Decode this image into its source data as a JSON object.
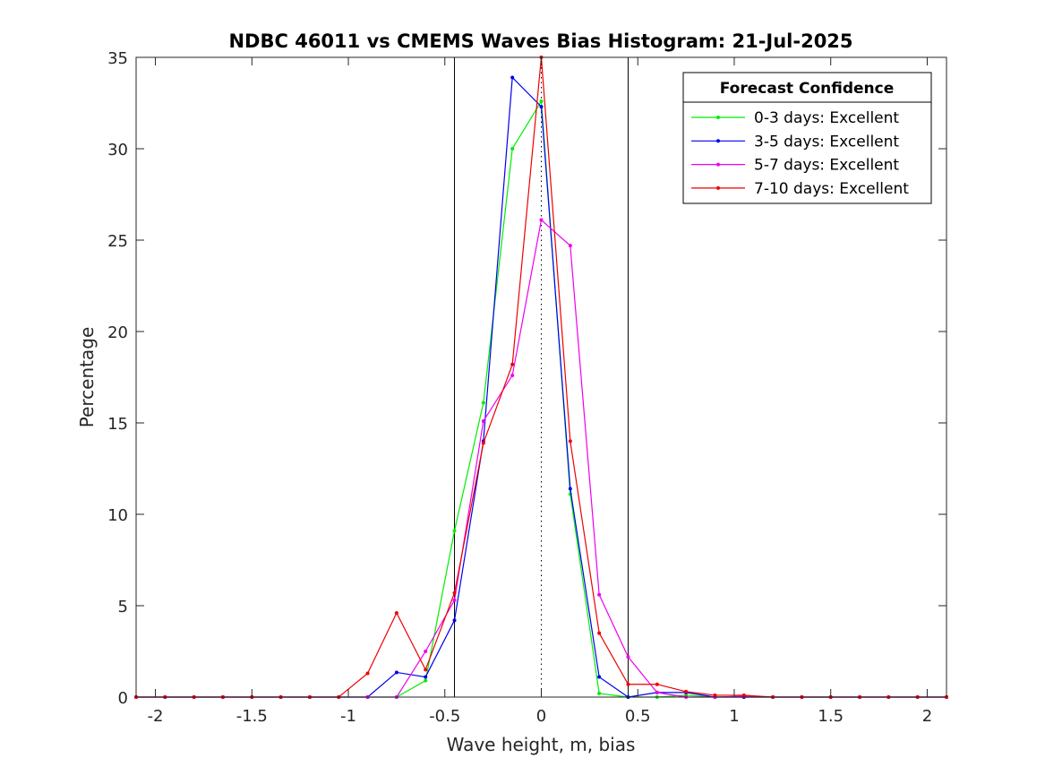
{
  "chart_data": {
    "type": "line",
    "title": "NDBC 46011 vs CMEMS Waves Bias Histogram: 21-Jul-2025",
    "xlabel": "Wave height, m, bias",
    "ylabel": "Percentage",
    "xlim": [
      -2.1,
      2.1
    ],
    "ylim": [
      0,
      35
    ],
    "xticks": [
      -2,
      -1.5,
      -1,
      -0.5,
      0,
      0.5,
      1,
      1.5,
      2
    ],
    "xtick_labels": [
      "-2",
      "-1.5",
      "-1",
      "-0.5",
      "0",
      "0.5",
      "1",
      "1.5",
      "2"
    ],
    "yticks": [
      0,
      5,
      10,
      15,
      20,
      25,
      30,
      35
    ],
    "ytick_labels": [
      "0",
      "5",
      "10",
      "15",
      "20",
      "25",
      "30",
      "35"
    ],
    "grid": false,
    "reference_lines": [
      {
        "x": -0.45,
        "style": "solid",
        "color": "#000000"
      },
      {
        "x": 0.45,
        "style": "solid",
        "color": "#000000"
      },
      {
        "x": 0,
        "style": "dotted",
        "color": "#000000"
      }
    ],
    "legend": {
      "title": "Forecast Confidence",
      "placement": "top-right"
    },
    "x": [
      -2.1,
      -1.95,
      -1.8,
      -1.65,
      -1.5,
      -1.35,
      -1.2,
      -1.05,
      -0.9,
      -0.75,
      -0.6,
      -0.45,
      -0.3,
      -0.15,
      0,
      0.15,
      0.3,
      0.45,
      0.6,
      0.75,
      0.9,
      1.05,
      1.2,
      1.35,
      1.5,
      1.65,
      1.8,
      1.95,
      2.1
    ],
    "series": [
      {
        "name": "0-3 days: Excellent",
        "color": "#00ee00",
        "values": [
          0,
          0,
          0,
          0,
          0,
          0,
          0,
          0,
          0,
          0,
          0.9,
          9.1,
          16.1,
          30.0,
          32.6,
          11.1,
          0.2,
          0.0,
          0.0,
          0.1,
          0.0,
          0,
          0,
          0,
          0,
          0,
          0,
          0,
          0
        ]
      },
      {
        "name": "3-5 days: Excellent",
        "color": "#0000ee",
        "values": [
          0,
          0,
          0,
          0,
          0,
          0,
          0,
          0,
          0,
          1.35,
          1.1,
          4.2,
          14.0,
          33.9,
          32.3,
          11.4,
          1.1,
          0.0,
          0.25,
          0.25,
          0.0,
          0,
          0,
          0,
          0,
          0,
          0,
          0,
          0
        ]
      },
      {
        "name": "5-7 days: Excellent",
        "color": "#ee00ee",
        "values": [
          0,
          0,
          0,
          0,
          0,
          0,
          0,
          0,
          0,
          0,
          2.5,
          5.3,
          15.1,
          17.6,
          26.1,
          24.7,
          5.6,
          2.2,
          0.25,
          0.0,
          0.0,
          0.05,
          0,
          0,
          0,
          0,
          0,
          0,
          0
        ]
      },
      {
        "name": "7-10 days: Excellent",
        "color": "#ee0000",
        "values": [
          0,
          0,
          0,
          0,
          0,
          0,
          0,
          0,
          1.3,
          4.6,
          1.5,
          5.7,
          13.9,
          18.2,
          35.0,
          14.0,
          3.5,
          0.7,
          0.7,
          0.3,
          0.1,
          0.1,
          0,
          0,
          0,
          0,
          0,
          0,
          0
        ]
      }
    ]
  }
}
